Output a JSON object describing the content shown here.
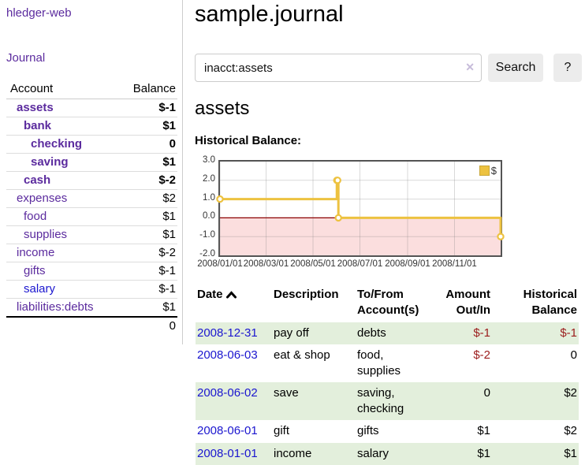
{
  "app": {
    "brand": "hledger-web"
  },
  "sidebar": {
    "journal_label": "Journal",
    "accounts_table": {
      "headers": [
        "Account",
        "Balance"
      ],
      "rows": [
        {
          "name": "assets",
          "depth": 1,
          "bold": true,
          "name_color": "purple",
          "balance": "$-1",
          "balance_class": "neg-strong"
        },
        {
          "name": "bank",
          "depth": 2,
          "bold": true,
          "name_color": "purple",
          "balance": "$1",
          "balance_class": ""
        },
        {
          "name": "checking",
          "depth": 3,
          "bold": true,
          "name_color": "purple",
          "balance": "0",
          "balance_class": ""
        },
        {
          "name": "saving",
          "depth": 3,
          "bold": true,
          "name_color": "purple",
          "balance": "$1",
          "balance_class": ""
        },
        {
          "name": "cash",
          "depth": 2,
          "bold": true,
          "name_color": "purple",
          "balance": "$-2",
          "balance_class": "neg-strong"
        },
        {
          "name": "expenses",
          "depth": 1,
          "bold": false,
          "name_color": "purple",
          "balance": "$2",
          "balance_class": ""
        },
        {
          "name": "food",
          "depth": 2,
          "bold": false,
          "name_color": "purple",
          "balance": "$1",
          "balance_class": ""
        },
        {
          "name": "supplies",
          "depth": 2,
          "bold": false,
          "name_color": "purple",
          "balance": "$1",
          "balance_class": ""
        },
        {
          "name": "income",
          "depth": 1,
          "bold": false,
          "name_color": "purple",
          "balance": "$-2",
          "balance_class": "neg-soft"
        },
        {
          "name": "gifts",
          "depth": 2,
          "bold": false,
          "name_color": "purple",
          "balance": "$-1",
          "balance_class": "neg-soft"
        },
        {
          "name": "salary",
          "depth": 2,
          "bold": false,
          "name_color": "blue",
          "balance": "$-1",
          "balance_class": "neg-soft"
        },
        {
          "name": "liabilities:debts",
          "depth": 1,
          "bold": false,
          "name_color": "purple",
          "balance": "$1",
          "balance_class": ""
        }
      ],
      "total": "0"
    }
  },
  "header": {
    "title": "sample.journal"
  },
  "search": {
    "value": "inacct:assets",
    "clear_icon": "✕",
    "search_label": "Search",
    "help_label": "?"
  },
  "account_page": {
    "heading": "assets",
    "chart_label": "Historical Balance:"
  },
  "chart_data": {
    "type": "line",
    "step": true,
    "title": "Historical Balance:",
    "legend": {
      "label": "$",
      "position": "top-right"
    },
    "series": [
      {
        "name": "$",
        "color": "#edc240",
        "points": [
          {
            "date": "2008-01-01",
            "day": 0,
            "value": 1
          },
          {
            "date": "2008-06-01",
            "day": 152,
            "value": 2
          },
          {
            "date": "2008-06-02",
            "day": 153,
            "value": 2
          },
          {
            "date": "2008-06-03",
            "day": 154,
            "value": 0
          },
          {
            "date": "2008-12-31",
            "day": 365,
            "value": -1
          }
        ]
      }
    ],
    "x_ticks": [
      {
        "label": "2008/01/01",
        "day": 0
      },
      {
        "label": "2008/03/01",
        "day": 60
      },
      {
        "label": "2008/05/01",
        "day": 121
      },
      {
        "label": "2008/07/01",
        "day": 182
      },
      {
        "label": "2008/09/01",
        "day": 244
      },
      {
        "label": "2008/11/01",
        "day": 305
      }
    ],
    "y_ticks": [
      "3.0",
      "2.0",
      "1.0",
      "0.0",
      "-1.0",
      "-2.0"
    ],
    "ylim": [
      -2,
      3
    ],
    "xlim_days": [
      0,
      365
    ],
    "grid": true,
    "negative_region_color": "#fbdede",
    "zero_line_color": "#8b0000",
    "line_color": "#edc240"
  },
  "register_table": {
    "headers": [
      {
        "lines": [
          "Date"
        ],
        "align": "left",
        "sort": "asc"
      },
      {
        "lines": [
          "Description"
        ],
        "align": "left"
      },
      {
        "lines": [
          "To/From",
          "Account(s)"
        ],
        "align": "left"
      },
      {
        "lines": [
          "Amount",
          "Out/In"
        ],
        "align": "right"
      },
      {
        "lines": [
          "Historical",
          "Balance"
        ],
        "align": "right"
      }
    ],
    "rows": [
      {
        "date": "2008-12-31",
        "description": "pay off",
        "accounts": "debts",
        "amount": "$-1",
        "amount_neg": true,
        "balance": "$-1",
        "balance_neg": true,
        "shaded": true
      },
      {
        "date": "2008-06-03",
        "description": "eat & shop",
        "accounts": "food, supplies",
        "amount": "$-2",
        "amount_neg": true,
        "balance": "0",
        "balance_neg": false,
        "shaded": false
      },
      {
        "date": "2008-06-02",
        "description": "save",
        "accounts": "saving, checking",
        "amount": "0",
        "amount_neg": false,
        "balance": "$2",
        "balance_neg": false,
        "shaded": true
      },
      {
        "date": "2008-06-01",
        "description": "gift",
        "accounts": "gifts",
        "amount": "$1",
        "amount_neg": false,
        "balance": "$2",
        "balance_neg": false,
        "shaded": false
      },
      {
        "date": "2008-01-01",
        "description": "income",
        "accounts": "salary",
        "amount": "$1",
        "amount_neg": false,
        "balance": "$1",
        "balance_neg": false,
        "shaded": true
      }
    ]
  }
}
